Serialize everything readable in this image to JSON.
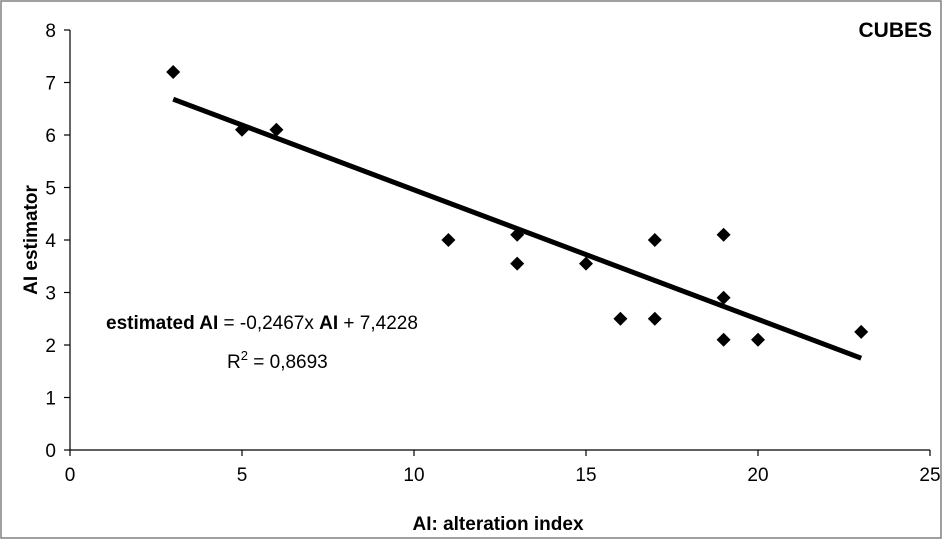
{
  "chart_data": {
    "type": "scatter",
    "title": "CUBES",
    "xlabel": "AI: alteration index",
    "ylabel": "AI estimator",
    "xlim": [
      0,
      25
    ],
    "ylim": [
      0,
      8
    ],
    "xticks": [
      "0",
      "5",
      "10",
      "15",
      "20",
      "25"
    ],
    "yticks": [
      "0",
      "1",
      "2",
      "3",
      "4",
      "5",
      "6",
      "7",
      "8"
    ],
    "grid": false,
    "points": [
      {
        "x": 3,
        "y": 7.2
      },
      {
        "x": 5,
        "y": 6.1
      },
      {
        "x": 6,
        "y": 6.1
      },
      {
        "x": 11,
        "y": 4.0
      },
      {
        "x": 13,
        "y": 4.1
      },
      {
        "x": 13,
        "y": 3.55
      },
      {
        "x": 15,
        "y": 3.55
      },
      {
        "x": 16,
        "y": 2.5
      },
      {
        "x": 17,
        "y": 4.0
      },
      {
        "x": 17,
        "y": 2.5
      },
      {
        "x": 19,
        "y": 4.1
      },
      {
        "x": 19,
        "y": 2.9
      },
      {
        "x": 19,
        "y": 2.1
      },
      {
        "x": 20,
        "y": 2.1
      },
      {
        "x": 23,
        "y": 2.25
      }
    ],
    "trendline": {
      "slope": -0.2467,
      "intercept": 7.4228,
      "x_range": [
        3,
        23
      ]
    },
    "equation": {
      "part1": "estimated AI",
      "part2": " = -0,2467x ",
      "part3": "AI",
      "part4": " + 7,4228"
    },
    "r2": {
      "prefix": "R",
      "sup": "2",
      "value": " = 0,8693"
    },
    "colors": {
      "marker": "#000000",
      "trendline": "#000000",
      "frame": "#808080"
    }
  }
}
